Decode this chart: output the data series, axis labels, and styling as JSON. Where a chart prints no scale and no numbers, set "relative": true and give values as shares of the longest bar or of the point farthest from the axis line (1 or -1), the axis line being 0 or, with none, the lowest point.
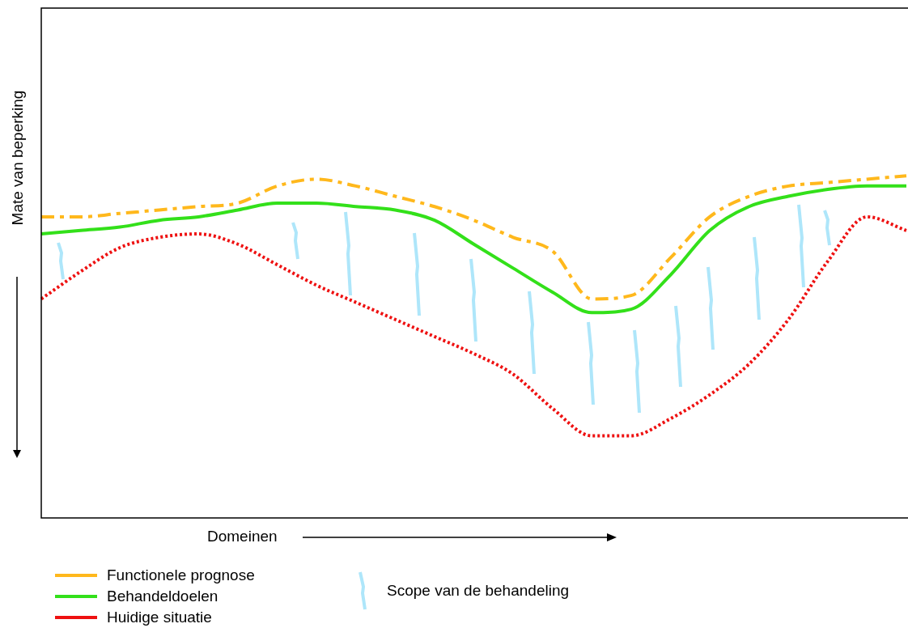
{
  "chart_data": {
    "type": "line",
    "relative": true,
    "xlabel": "Domeinen",
    "ylabel": "Mate van beperking",
    "legend": "bottom left",
    "categories": [
      null,
      null,
      null,
      null,
      null,
      null,
      null,
      null,
      null,
      null,
      null,
      null,
      null,
      null,
      null,
      null,
      null,
      null,
      null,
      null,
      null,
      null,
      null
    ],
    "series": [
      {
        "name": "Functionele prognose",
        "color": "#ffb81c",
        "line_style": "dashed",
        "values": [
          0.88,
          0.88,
          0.89,
          0.9,
          0.91,
          0.92,
          0.97,
          0.99,
          0.97,
          0.94,
          0.91,
          0.87,
          0.82,
          0.78,
          0.64,
          0.65,
          0.76,
          0.88,
          0.94,
          0.97,
          0.98,
          0.99,
          1
        ]
      },
      {
        "name": "Behandeldoelen",
        "color": "#33e01a",
        "line_style": "solid",
        "values": [
          0.83,
          0.84,
          0.85,
          0.87,
          0.88,
          0.9,
          0.92,
          0.92,
          0.91,
          0.9,
          0.87,
          0.8,
          0.73,
          0.66,
          0.6,
          0.61,
          0.71,
          0.84,
          0.91,
          0.94,
          0.96,
          0.97,
          0.97
        ]
      },
      {
        "name": "Huidige situatie",
        "color": "#ee1111",
        "line_style": "dotted",
        "values": [
          0.64,
          0.72,
          0.79,
          0.82,
          0.83,
          0.8,
          0.74,
          0.68,
          0.63,
          0.58,
          0.53,
          0.48,
          0.42,
          0.32,
          0.24,
          0.24,
          0.29,
          0.36,
          0.45,
          0.58,
          0.75,
          0.88,
          0.84
        ]
      }
    ],
    "annotations": [
      "Scope van de behandeling"
    ],
    "marker": "none"
  }
}
